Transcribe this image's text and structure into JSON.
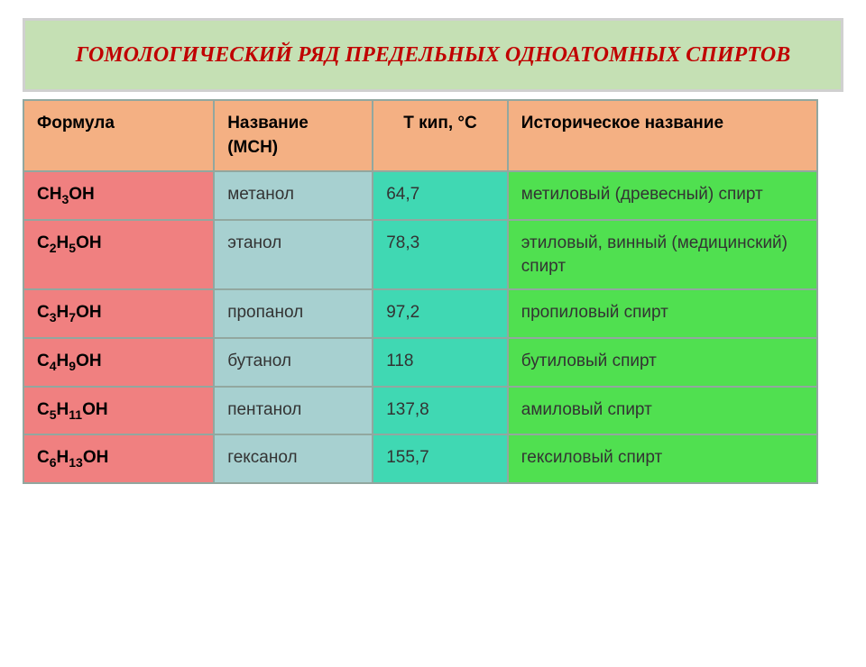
{
  "title": "ГОМОЛОГИЧЕСКИЙ РЯД ПРЕДЕЛЬНЫХ ОДНОАТОМНЫХ СПИРТОВ",
  "columns": {
    "formula": "Формула",
    "name": "Название (МСН)",
    "temp": "Т кип, °С",
    "hist": "Историческое название"
  },
  "rows": [
    {
      "formula_html": "CH<sub>3</sub>OH",
      "name": "метанол",
      "temp": "64,7",
      "hist": "метиловый (древесный) спирт"
    },
    {
      "formula_html": "C<sub>2</sub>H<sub>5</sub>OH",
      "name": "этанол",
      "temp": "78,3",
      "hist": "этиловый, винный (медицинский) спирт"
    },
    {
      "formula_html": "C<sub>3</sub>H<sub>7</sub>OH",
      "name": "пропанол",
      "temp": "97,2",
      "hist": "пропиловый спирт"
    },
    {
      "formula_html": "C<sub>4</sub>H<sub>9</sub>OH",
      "name": "бутанол",
      "temp": "118",
      "hist": "бутиловый спирт"
    },
    {
      "formula_html": "C<sub>5</sub>H<sub>11</sub>OH",
      "name": "пентанол",
      "temp": "137,8",
      "hist": "амиловый спирт"
    },
    {
      "formula_html": "C<sub>6</sub>H<sub>13</sub>OH",
      "name": "гексанол",
      "temp": "155,7",
      "hist": "гексиловый спирт"
    }
  ],
  "styles": {
    "page_background": "#ffffff",
    "title_background": "#c5e0b4",
    "title_border": "#d0d0d0",
    "title_color": "#c00000",
    "title_fontsize": 24,
    "header_background": "#f4b083",
    "header_fontsize": 19,
    "cell_fontsize": 19,
    "border_color": "#92a79f",
    "col_formula_bg": "#f08080",
    "col_name_bg": "#a7d0d0",
    "col_temp_bg": "#40d8b3",
    "col_hist_bg": "#50e050",
    "col_formula_width": "24%",
    "col_name_width": "20%",
    "col_temp_width": "17%",
    "col_hist_width": "39%"
  }
}
